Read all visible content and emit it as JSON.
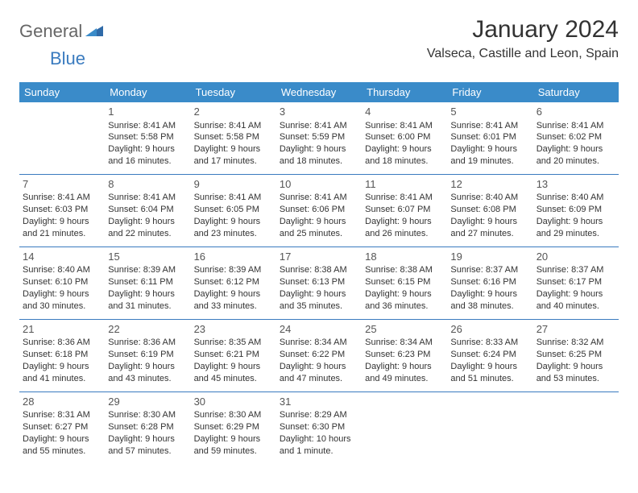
{
  "logo": {
    "part1": "General",
    "part2": "Blue"
  },
  "title": "January 2024",
  "subtitle": "Valseca, Castille and Leon, Spain",
  "colors": {
    "header_bg": "#3a8bc9",
    "header_text": "#ffffff",
    "border": "#3a7bbf",
    "logo_gray": "#666666",
    "logo_blue": "#3a7bbf",
    "body_text": "#333333",
    "daynum": "#555555",
    "background": "#ffffff"
  },
  "font": {
    "daynum_size": 13,
    "cell_size": 11,
    "header_size": 13,
    "title_size": 30,
    "subtitle_size": 16
  },
  "days_of_week": [
    "Sunday",
    "Monday",
    "Tuesday",
    "Wednesday",
    "Thursday",
    "Friday",
    "Saturday"
  ],
  "weeks": [
    [
      null,
      {
        "n": "1",
        "sr": "Sunrise: 8:41 AM",
        "ss": "Sunset: 5:58 PM",
        "d1": "Daylight: 9 hours",
        "d2": "and 16 minutes."
      },
      {
        "n": "2",
        "sr": "Sunrise: 8:41 AM",
        "ss": "Sunset: 5:58 PM",
        "d1": "Daylight: 9 hours",
        "d2": "and 17 minutes."
      },
      {
        "n": "3",
        "sr": "Sunrise: 8:41 AM",
        "ss": "Sunset: 5:59 PM",
        "d1": "Daylight: 9 hours",
        "d2": "and 18 minutes."
      },
      {
        "n": "4",
        "sr": "Sunrise: 8:41 AM",
        "ss": "Sunset: 6:00 PM",
        "d1": "Daylight: 9 hours",
        "d2": "and 18 minutes."
      },
      {
        "n": "5",
        "sr": "Sunrise: 8:41 AM",
        "ss": "Sunset: 6:01 PM",
        "d1": "Daylight: 9 hours",
        "d2": "and 19 minutes."
      },
      {
        "n": "6",
        "sr": "Sunrise: 8:41 AM",
        "ss": "Sunset: 6:02 PM",
        "d1": "Daylight: 9 hours",
        "d2": "and 20 minutes."
      }
    ],
    [
      {
        "n": "7",
        "sr": "Sunrise: 8:41 AM",
        "ss": "Sunset: 6:03 PM",
        "d1": "Daylight: 9 hours",
        "d2": "and 21 minutes."
      },
      {
        "n": "8",
        "sr": "Sunrise: 8:41 AM",
        "ss": "Sunset: 6:04 PM",
        "d1": "Daylight: 9 hours",
        "d2": "and 22 minutes."
      },
      {
        "n": "9",
        "sr": "Sunrise: 8:41 AM",
        "ss": "Sunset: 6:05 PM",
        "d1": "Daylight: 9 hours",
        "d2": "and 23 minutes."
      },
      {
        "n": "10",
        "sr": "Sunrise: 8:41 AM",
        "ss": "Sunset: 6:06 PM",
        "d1": "Daylight: 9 hours",
        "d2": "and 25 minutes."
      },
      {
        "n": "11",
        "sr": "Sunrise: 8:41 AM",
        "ss": "Sunset: 6:07 PM",
        "d1": "Daylight: 9 hours",
        "d2": "and 26 minutes."
      },
      {
        "n": "12",
        "sr": "Sunrise: 8:40 AM",
        "ss": "Sunset: 6:08 PM",
        "d1": "Daylight: 9 hours",
        "d2": "and 27 minutes."
      },
      {
        "n": "13",
        "sr": "Sunrise: 8:40 AM",
        "ss": "Sunset: 6:09 PM",
        "d1": "Daylight: 9 hours",
        "d2": "and 29 minutes."
      }
    ],
    [
      {
        "n": "14",
        "sr": "Sunrise: 8:40 AM",
        "ss": "Sunset: 6:10 PM",
        "d1": "Daylight: 9 hours",
        "d2": "and 30 minutes."
      },
      {
        "n": "15",
        "sr": "Sunrise: 8:39 AM",
        "ss": "Sunset: 6:11 PM",
        "d1": "Daylight: 9 hours",
        "d2": "and 31 minutes."
      },
      {
        "n": "16",
        "sr": "Sunrise: 8:39 AM",
        "ss": "Sunset: 6:12 PM",
        "d1": "Daylight: 9 hours",
        "d2": "and 33 minutes."
      },
      {
        "n": "17",
        "sr": "Sunrise: 8:38 AM",
        "ss": "Sunset: 6:13 PM",
        "d1": "Daylight: 9 hours",
        "d2": "and 35 minutes."
      },
      {
        "n": "18",
        "sr": "Sunrise: 8:38 AM",
        "ss": "Sunset: 6:15 PM",
        "d1": "Daylight: 9 hours",
        "d2": "and 36 minutes."
      },
      {
        "n": "19",
        "sr": "Sunrise: 8:37 AM",
        "ss": "Sunset: 6:16 PM",
        "d1": "Daylight: 9 hours",
        "d2": "and 38 minutes."
      },
      {
        "n": "20",
        "sr": "Sunrise: 8:37 AM",
        "ss": "Sunset: 6:17 PM",
        "d1": "Daylight: 9 hours",
        "d2": "and 40 minutes."
      }
    ],
    [
      {
        "n": "21",
        "sr": "Sunrise: 8:36 AM",
        "ss": "Sunset: 6:18 PM",
        "d1": "Daylight: 9 hours",
        "d2": "and 41 minutes."
      },
      {
        "n": "22",
        "sr": "Sunrise: 8:36 AM",
        "ss": "Sunset: 6:19 PM",
        "d1": "Daylight: 9 hours",
        "d2": "and 43 minutes."
      },
      {
        "n": "23",
        "sr": "Sunrise: 8:35 AM",
        "ss": "Sunset: 6:21 PM",
        "d1": "Daylight: 9 hours",
        "d2": "and 45 minutes."
      },
      {
        "n": "24",
        "sr": "Sunrise: 8:34 AM",
        "ss": "Sunset: 6:22 PM",
        "d1": "Daylight: 9 hours",
        "d2": "and 47 minutes."
      },
      {
        "n": "25",
        "sr": "Sunrise: 8:34 AM",
        "ss": "Sunset: 6:23 PM",
        "d1": "Daylight: 9 hours",
        "d2": "and 49 minutes."
      },
      {
        "n": "26",
        "sr": "Sunrise: 8:33 AM",
        "ss": "Sunset: 6:24 PM",
        "d1": "Daylight: 9 hours",
        "d2": "and 51 minutes."
      },
      {
        "n": "27",
        "sr": "Sunrise: 8:32 AM",
        "ss": "Sunset: 6:25 PM",
        "d1": "Daylight: 9 hours",
        "d2": "and 53 minutes."
      }
    ],
    [
      {
        "n": "28",
        "sr": "Sunrise: 8:31 AM",
        "ss": "Sunset: 6:27 PM",
        "d1": "Daylight: 9 hours",
        "d2": "and 55 minutes."
      },
      {
        "n": "29",
        "sr": "Sunrise: 8:30 AM",
        "ss": "Sunset: 6:28 PM",
        "d1": "Daylight: 9 hours",
        "d2": "and 57 minutes."
      },
      {
        "n": "30",
        "sr": "Sunrise: 8:30 AM",
        "ss": "Sunset: 6:29 PM",
        "d1": "Daylight: 9 hours",
        "d2": "and 59 minutes."
      },
      {
        "n": "31",
        "sr": "Sunrise: 8:29 AM",
        "ss": "Sunset: 6:30 PM",
        "d1": "Daylight: 10 hours",
        "d2": "and 1 minute."
      },
      null,
      null,
      null
    ]
  ]
}
